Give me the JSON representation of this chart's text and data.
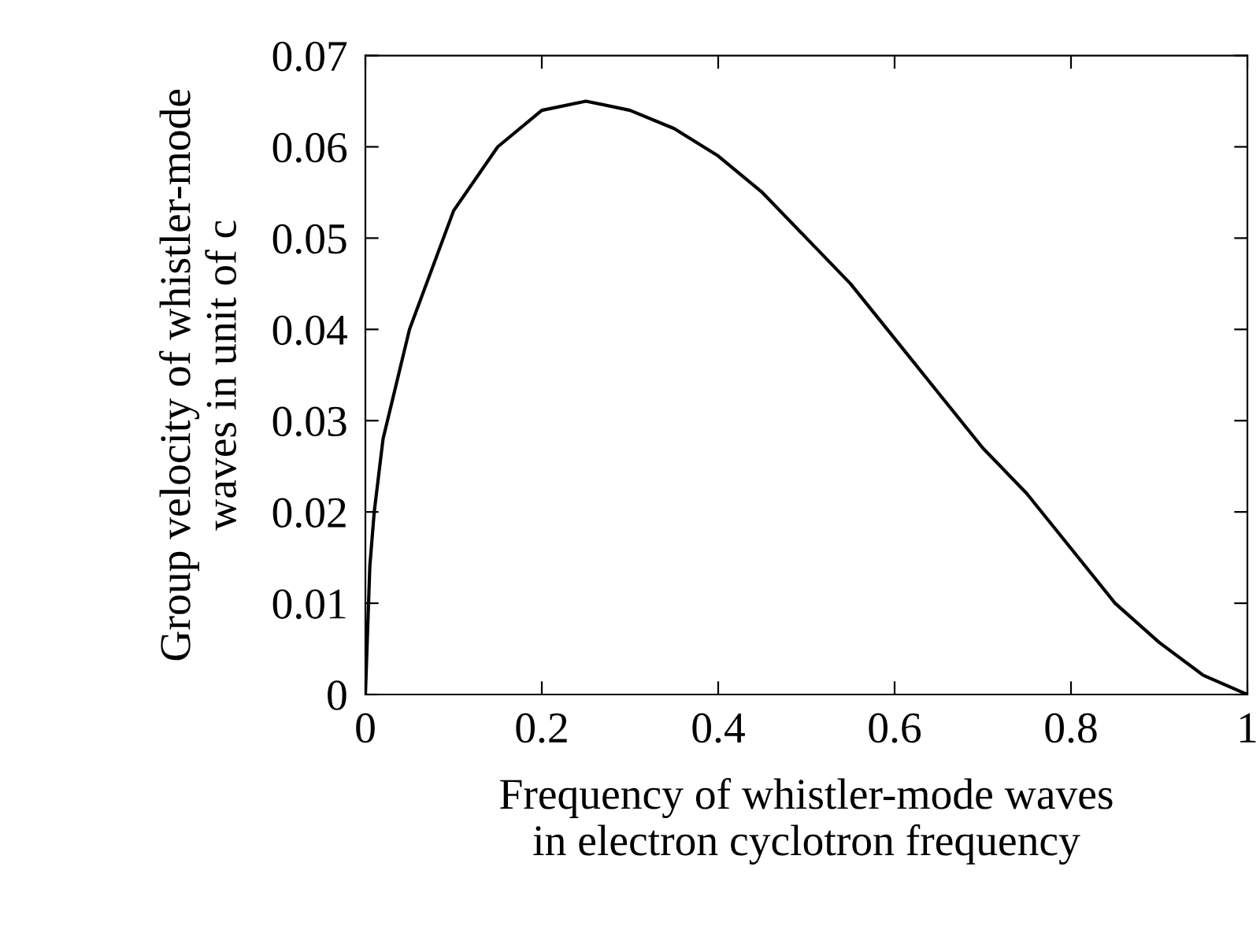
{
  "chart_data": {
    "type": "line",
    "xlabel": "Frequency of whistler-mode waves\nin electron cyclotron frequency",
    "ylabel": "Group velocity of whistler-mode\nwaves in unit of c",
    "x": [
      0,
      0.005,
      0.01,
      0.02,
      0.05,
      0.1,
      0.15,
      0.2,
      0.25,
      0.3,
      0.35,
      0.4,
      0.45,
      0.5,
      0.55,
      0.6,
      0.65,
      0.7,
      0.75,
      0.8,
      0.85,
      0.9,
      0.95,
      1.0
    ],
    "series": [
      {
        "color": "#000000",
        "values": [
          0,
          0.014,
          0.02,
          0.028,
          0.04,
          0.053,
          0.06,
          0.064,
          0.065,
          0.064,
          0.062,
          0.059,
          0.055,
          0.05,
          0.045,
          0.039,
          0.033,
          0.027,
          0.022,
          0.016,
          0.01,
          0.0057,
          0.0021,
          0
        ]
      }
    ],
    "xlim": [
      0,
      1
    ],
    "ylim": [
      0,
      0.07
    ],
    "xticks": [
      0,
      0.2,
      0.4,
      0.6,
      0.8,
      1
    ],
    "yticks": [
      0,
      0.01,
      0.02,
      0.03,
      0.04,
      0.05,
      0.06,
      0.07
    ],
    "grid": false,
    "legend": false,
    "marker": "none",
    "line_style": "solid"
  }
}
